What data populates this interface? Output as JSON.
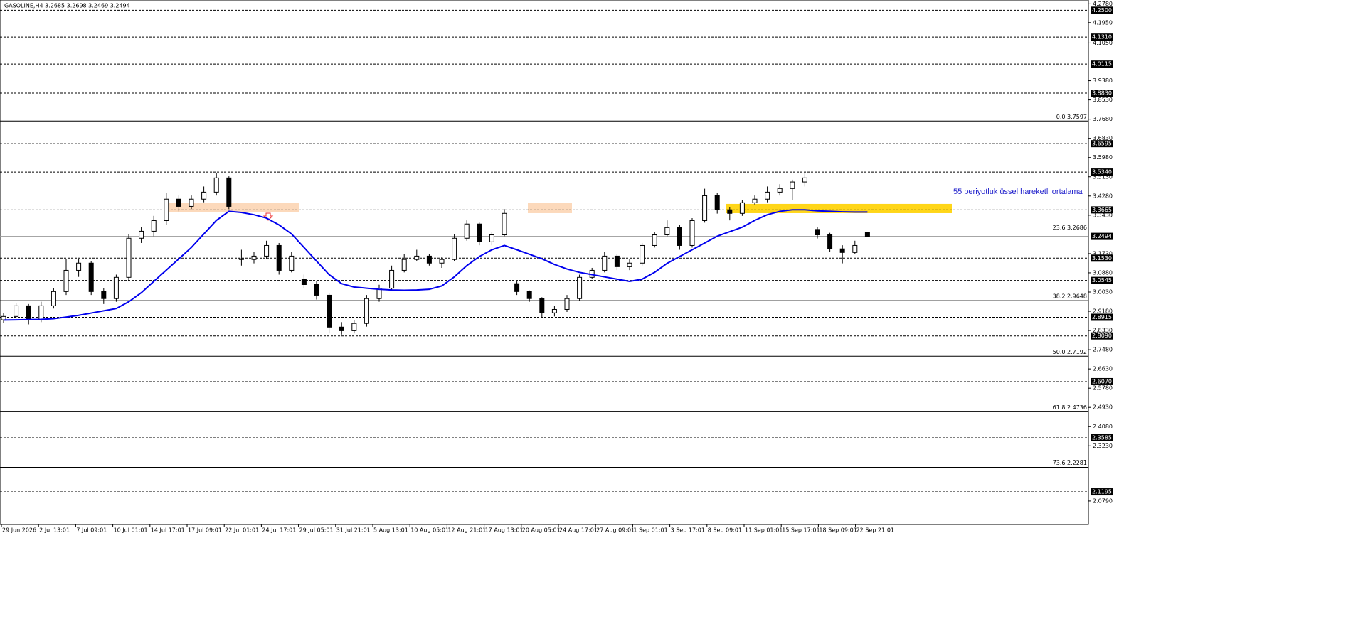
{
  "chart_data": {
    "type": "candlestick",
    "title": "GASOLINE,H4  3.2685 3.2698 3.2469 3.2494",
    "annotation": "55 periyotluk üssel hareketli ortalama",
    "ylim": [
      1.975,
      4.295
    ],
    "yticks": [
      {
        "value": 4.278,
        "label": "4.2780"
      },
      {
        "value": 4.195,
        "label": "4.1950"
      },
      {
        "value": 4.105,
        "label": "4.1050"
      },
      {
        "value": 3.938,
        "label": "3.9380"
      },
      {
        "value": 3.853,
        "label": "3.8530"
      },
      {
        "value": 3.768,
        "label": "3.7680"
      },
      {
        "value": 3.683,
        "label": "3.6830"
      },
      {
        "value": 3.598,
        "label": "3.5980"
      },
      {
        "value": 3.513,
        "label": "3.5130"
      },
      {
        "value": 3.428,
        "label": "3.4280"
      },
      {
        "value": 3.343,
        "label": "3.3430"
      },
      {
        "value": 3.173,
        "label": "3.1730"
      },
      {
        "value": 3.088,
        "label": "3.0880"
      },
      {
        "value": 3.003,
        "label": "3.0030"
      },
      {
        "value": 2.918,
        "label": "2.9180"
      },
      {
        "value": 2.833,
        "label": "2.8330"
      },
      {
        "value": 2.748,
        "label": "2.7480"
      },
      {
        "value": 2.663,
        "label": "2.6630"
      },
      {
        "value": 2.578,
        "label": "2.5780"
      },
      {
        "value": 2.493,
        "label": "2.4930"
      },
      {
        "value": 2.408,
        "label": "2.4080"
      },
      {
        "value": 2.323,
        "label": "2.3230"
      },
      {
        "value": 2.079,
        "label": "2.0790"
      }
    ],
    "categories": [
      "29 Jun 2026",
      "2 Jul 13:01",
      "7 Jul 09:01",
      "10 Jul 01:01",
      "14 Jul 17:01",
      "17 Jul 09:01",
      "22 Jul 01:01",
      "24 Jul 17:01",
      "29 Jul 05:01",
      "31 Jul 21:01",
      "5 Aug 13:01",
      "10 Aug 05:01",
      "12 Aug 21:01",
      "17 Aug 13:01",
      "20 Aug 05:01",
      "24 Aug 17:01",
      "27 Aug 09:01",
      "1 Sep 01:01",
      "3 Sep 17:01",
      "8 Sep 09:01",
      "11 Sep 01:01",
      "15 Sep 17:01",
      "18 Sep 09:01",
      "22 Sep 21:01"
    ],
    "levels": [
      {
        "value": 4.25,
        "label": "4.2500"
      },
      {
        "value": 4.131,
        "label": "4.1310"
      },
      {
        "value": 4.0115,
        "label": "4.0115"
      },
      {
        "value": 3.883,
        "label": "3.8830"
      },
      {
        "value": 3.6595,
        "label": "3.6595"
      },
      {
        "value": 3.534,
        "label": "3.5340"
      },
      {
        "value": 3.3665,
        "label": "3.3665"
      },
      {
        "value": 3.153,
        "label": "3.1530"
      },
      {
        "value": 3.0545,
        "label": "3.0545"
      },
      {
        "value": 2.8915,
        "label": "2.8915"
      },
      {
        "value": 2.809,
        "label": "2.8090"
      },
      {
        "value": 2.607,
        "label": "2.6070"
      },
      {
        "value": 2.3585,
        "label": "2.3585"
      },
      {
        "value": 2.1195,
        "label": "2.1195"
      }
    ],
    "bid": {
      "value": 3.2494,
      "label": "3.2494"
    },
    "fib": [
      {
        "value": 3.7597,
        "label": "0.0 3.7597"
      },
      {
        "value": 3.2686,
        "label": "23.6 3.2686"
      },
      {
        "value": 2.9648,
        "label": "38.2 2.9648"
      },
      {
        "value": 2.7192,
        "label": "50.0 2.7192"
      },
      {
        "value": 2.4736,
        "label": "61.8 2.4736"
      },
      {
        "value": 2.2281,
        "label": "73.6 2.2281"
      }
    ],
    "zones": [
      {
        "low": 3.357,
        "high": 3.399,
        "color": "#fcd5b4"
      },
      {
        "low": 3.352,
        "high": 3.399,
        "color": "#fcd5b4"
      },
      {
        "low": 3.352,
        "high": 3.393,
        "color": "#ffd200"
      }
    ],
    "ema_color": "#0000ee",
    "candles": [
      [
        2.88,
        2.91,
        2.865,
        2.895
      ],
      [
        2.895,
        2.955,
        2.885,
        2.942
      ],
      [
        2.942,
        2.95,
        2.86,
        2.879
      ],
      [
        2.879,
        2.96,
        2.87,
        2.942
      ],
      [
        2.942,
        3.02,
        2.93,
        3.005
      ],
      [
        3.005,
        3.15,
        2.99,
        3.099
      ],
      [
        3.099,
        3.15,
        3.07,
        3.131
      ],
      [
        3.131,
        3.14,
        2.99,
        3.005
      ],
      [
        3.005,
        3.02,
        2.95,
        2.974
      ],
      [
        2.974,
        3.08,
        2.96,
        3.068
      ],
      [
        3.068,
        3.26,
        3.05,
        3.241
      ],
      [
        3.241,
        3.29,
        3.22,
        3.272
      ],
      [
        3.272,
        3.34,
        3.25,
        3.319
      ],
      [
        3.319,
        3.44,
        3.3,
        3.414
      ],
      [
        3.414,
        3.43,
        3.36,
        3.382
      ],
      [
        3.382,
        3.43,
        3.37,
        3.414
      ],
      [
        3.414,
        3.47,
        3.4,
        3.445
      ],
      [
        3.445,
        3.53,
        3.43,
        3.508
      ],
      [
        3.508,
        3.515,
        3.37,
        3.382
      ],
      [
        3.15,
        3.19,
        3.12,
        3.147
      ],
      [
        3.147,
        3.18,
        3.13,
        3.162
      ],
      [
        3.162,
        3.23,
        3.15,
        3.209
      ],
      [
        3.209,
        3.22,
        3.08,
        3.099
      ],
      [
        3.099,
        3.18,
        3.09,
        3.162
      ],
      [
        3.06,
        3.08,
        3.02,
        3.036
      ],
      [
        3.036,
        3.05,
        2.97,
        2.989
      ],
      [
        2.989,
        3.0,
        2.82,
        2.848
      ],
      [
        2.848,
        2.87,
        2.815,
        2.832
      ],
      [
        2.832,
        2.88,
        2.82,
        2.864
      ],
      [
        2.864,
        2.99,
        2.85,
        2.974
      ],
      [
        2.974,
        3.035,
        2.96,
        3.02
      ],
      [
        3.02,
        3.12,
        3.01,
        3.099
      ],
      [
        3.099,
        3.17,
        3.09,
        3.147
      ],
      [
        3.147,
        3.19,
        3.14,
        3.162
      ],
      [
        3.162,
        3.17,
        3.12,
        3.131
      ],
      [
        3.131,
        3.16,
        3.11,
        3.147
      ],
      [
        3.147,
        3.26,
        3.14,
        3.241
      ],
      [
        3.241,
        3.32,
        3.23,
        3.304
      ],
      [
        3.304,
        3.31,
        3.21,
        3.225
      ],
      [
        3.225,
        3.27,
        3.21,
        3.256
      ],
      [
        3.256,
        3.37,
        3.25,
        3.351
      ],
      [
        3.04,
        3.05,
        2.99,
        3.005
      ],
      [
        3.005,
        3.01,
        2.96,
        2.974
      ],
      [
        2.974,
        2.98,
        2.89,
        2.911
      ],
      [
        2.911,
        2.94,
        2.895,
        2.926
      ],
      [
        2.926,
        2.99,
        2.915,
        2.974
      ],
      [
        2.974,
        3.08,
        2.965,
        3.068
      ],
      [
        3.068,
        3.11,
        3.06,
        3.099
      ],
      [
        3.099,
        3.18,
        3.09,
        3.162
      ],
      [
        3.162,
        3.17,
        3.1,
        3.115
      ],
      [
        3.115,
        3.15,
        3.1,
        3.131
      ],
      [
        3.131,
        3.22,
        3.12,
        3.209
      ],
      [
        3.209,
        3.27,
        3.2,
        3.256
      ],
      [
        3.256,
        3.32,
        3.25,
        3.288
      ],
      [
        3.288,
        3.3,
        3.19,
        3.209
      ],
      [
        3.209,
        3.33,
        3.2,
        3.319
      ],
      [
        3.319,
        3.46,
        3.31,
        3.429
      ],
      [
        3.429,
        3.44,
        3.35,
        3.367
      ],
      [
        3.367,
        3.38,
        3.32,
        3.351
      ],
      [
        3.351,
        3.41,
        3.34,
        3.398
      ],
      [
        3.398,
        3.43,
        3.39,
        3.414
      ],
      [
        3.414,
        3.47,
        3.4,
        3.445
      ],
      [
        3.445,
        3.48,
        3.43,
        3.461
      ],
      [
        3.461,
        3.5,
        3.41,
        3.49
      ],
      [
        3.49,
        3.534,
        3.47,
        3.508
      ],
      [
        3.28,
        3.29,
        3.24,
        3.256
      ],
      [
        3.256,
        3.265,
        3.18,
        3.194
      ],
      [
        3.194,
        3.21,
        3.13,
        3.178
      ],
      [
        3.178,
        3.23,
        3.17,
        3.209
      ],
      [
        3.2685,
        3.2698,
        3.2469,
        3.2494
      ]
    ],
    "ema": [
      2.879,
      2.88,
      2.881,
      2.882,
      2.885,
      2.892,
      2.9,
      2.91,
      2.92,
      2.93,
      2.96,
      3.0,
      3.05,
      3.1,
      3.15,
      3.2,
      3.26,
      3.32,
      3.36,
      3.355,
      3.345,
      3.33,
      3.3,
      3.26,
      3.2,
      3.14,
      3.08,
      3.04,
      3.025,
      3.02,
      3.015,
      3.012,
      3.011,
      3.012,
      3.015,
      3.03,
      3.07,
      3.12,
      3.16,
      3.19,
      3.209,
      3.19,
      3.17,
      3.15,
      3.125,
      3.105,
      3.09,
      3.08,
      3.07,
      3.06,
      3.05,
      3.06,
      3.09,
      3.13,
      3.16,
      3.19,
      3.22,
      3.25,
      3.27,
      3.29,
      3.32,
      3.345,
      3.36,
      3.367,
      3.367,
      3.362,
      3.36,
      3.358,
      3.357,
      3.357
    ]
  }
}
